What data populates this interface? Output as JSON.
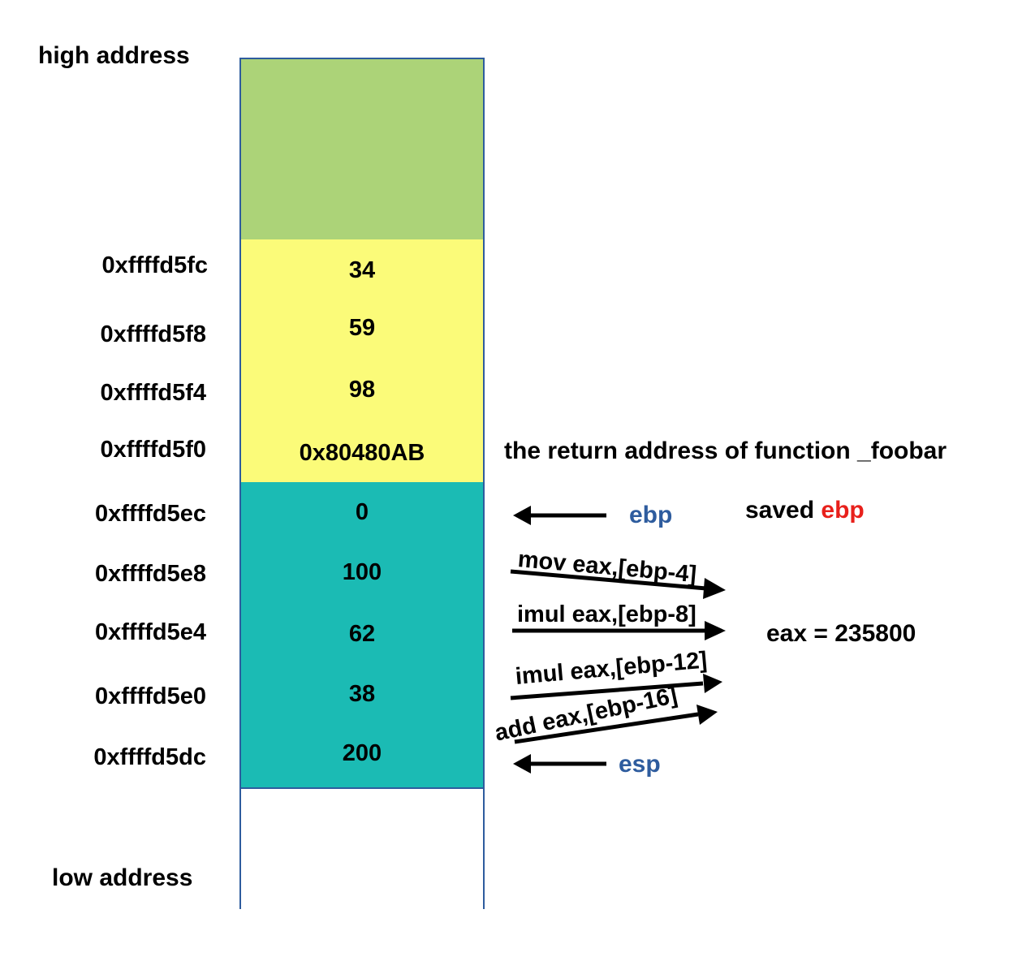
{
  "labels": {
    "high_address": "high address",
    "low_address": "low address"
  },
  "stack": [
    {
      "address": "",
      "value": "",
      "color": "#acd378"
    },
    {
      "address": "0xffffd5fc",
      "value": "34",
      "color": "#fbfb79"
    },
    {
      "address": "0xffffd5f8",
      "value": "59",
      "color": "#fbfb79"
    },
    {
      "address": "0xffffd5f4",
      "value": "98",
      "color": "#fbfb79"
    },
    {
      "address": "0xffffd5f0",
      "value": "0x80480AB",
      "color": "#fbfb79"
    },
    {
      "address": "0xffffd5ec",
      "value": "0",
      "color": "#1bbbb4"
    },
    {
      "address": "0xffffd5e8",
      "value": "100",
      "color": "#1bbbb4"
    },
    {
      "address": "0xffffd5e4",
      "value": "62",
      "color": "#1bbbb4"
    },
    {
      "address": "0xffffd5e0",
      "value": "38",
      "color": "#1bbbb4"
    },
    {
      "address": "0xffffd5dc",
      "value": "200",
      "color": "#1bbbb4"
    }
  ],
  "annotations": {
    "return_address": "the return address of function _foobar",
    "ebp": "ebp",
    "esp": "esp",
    "saved_prefix": "saved",
    "saved_reg": "ebp",
    "result": "eax = 235800"
  },
  "instructions": [
    "mov eax,[ebp-4]",
    "imul eax,[ebp-8]",
    "imul eax,[ebp-12]",
    "add eax,[ebp-16]"
  ],
  "colors": {
    "border": "#2e5c9e",
    "register": "#2e5c9e",
    "highlight": "#e8201b",
    "arrow": "#000000"
  }
}
